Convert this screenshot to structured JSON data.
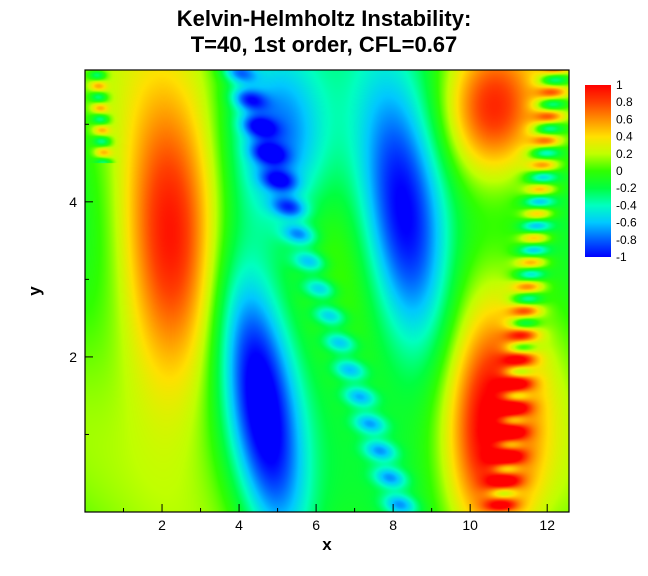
{
  "chart_data": {
    "type": "heatmap",
    "title_lines": [
      "Kelvin-Helmholtz Instability:",
      "T=40, 1st order, CFL=0.67"
    ],
    "xlabel": "x",
    "ylabel": "y",
    "xlim": [
      0,
      12.566
    ],
    "ylim": [
      0,
      5.7
    ],
    "x_ticks": [
      2,
      4,
      6,
      8,
      10,
      12
    ],
    "y_ticks": [
      2,
      4
    ],
    "colorbar": {
      "min": -1,
      "max": 1,
      "ticks": [
        "1",
        "0.8",
        "0.6",
        "0.4",
        "0.2",
        "0",
        "-0.2",
        "-0.4",
        "-0.6",
        "-0.8",
        "-1"
      ],
      "colormap": [
        "#0000ff",
        "#0060ff",
        "#00c8ff",
        "#00ffc0",
        "#00ff40",
        "#30ff00",
        "#c0ff00",
        "#ffe000",
        "#ff9000",
        "#ff4000",
        "#ff0000"
      ]
    },
    "features": [
      {
        "kind": "high",
        "value": 0.85,
        "x": 2.2,
        "y": 3.4
      },
      {
        "kind": "high",
        "value": 0.85,
        "x": 10.6,
        "y": 1.0
      },
      {
        "kind": "high",
        "value": 0.85,
        "x": 10.6,
        "y": 5.2
      },
      {
        "kind": "low",
        "value": -0.85,
        "x": 4.6,
        "y": 1.3
      },
      {
        "kind": "low",
        "value": -0.85,
        "x": 8.3,
        "y": 3.7
      },
      {
        "kind": "low",
        "value": -0.85,
        "x": 5.0,
        "y": 4.8
      },
      {
        "kind": "braid",
        "value": -0.7,
        "x": 6.5,
        "y": 1.5
      },
      {
        "kind": "braid",
        "value": 0.7,
        "x": 12.2,
        "y": 4.2
      }
    ]
  }
}
